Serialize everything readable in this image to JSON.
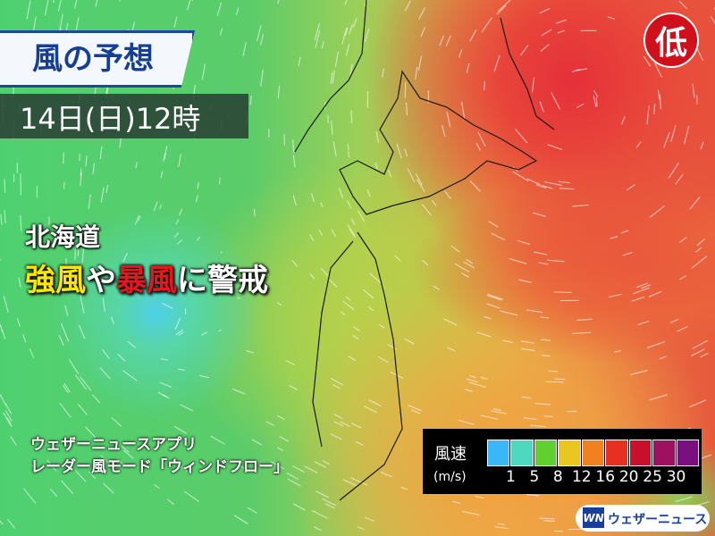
{
  "header": {
    "title": "風の予想",
    "datetime": "14日(日)12時"
  },
  "headline": {
    "region": "北海道",
    "part1": "強風",
    "part2": "や",
    "part3": "暴風",
    "part4": "に警戒"
  },
  "pressure_marker": {
    "label": "低",
    "color": "#d0101b"
  },
  "app_note": {
    "line1": "ウェザーニュースアプリ",
    "line2": "レーダー風モード「ウィンドフロー」"
  },
  "legend": {
    "title": "風速",
    "unit": "(m/s)",
    "ticks": [
      "1",
      "5",
      "8",
      "12",
      "16",
      "20",
      "25",
      "30"
    ],
    "colors": [
      "#3ab8f5",
      "#4fd8c0",
      "#5fd030",
      "#e8c820",
      "#f08020",
      "#e83020",
      "#c8102a",
      "#a01060",
      "#7a1080"
    ]
  },
  "brand": {
    "mark": "WN",
    "name": "ウェザーニュース"
  }
}
